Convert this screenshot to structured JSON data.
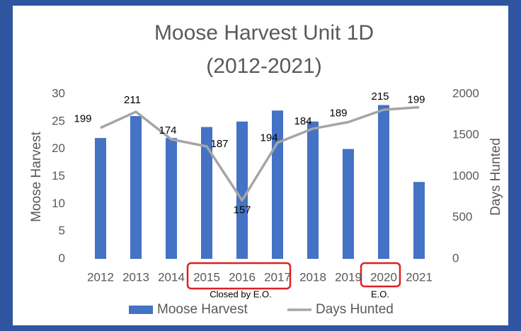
{
  "chart_data": {
    "type": "bar_line",
    "title": [
      "Moose Harvest Unit 1D",
      "(2012-2021)"
    ],
    "y_label": "Moose Harvest",
    "y2_label": "Days Hunted",
    "categories": [
      "2012",
      "2013",
      "2014",
      "2015",
      "2016",
      "2017",
      "2018",
      "2019",
      "2020",
      "2021"
    ],
    "series": [
      {
        "name": "Moose Harvest",
        "type": "bar",
        "color": "#4472c4",
        "values": [
          22,
          26,
          22,
          24,
          25,
          27,
          25,
          20,
          28,
          14
        ]
      },
      {
        "name": "Days Hunted",
        "type": "line",
        "axis": "y2",
        "color": "#a5a5a5",
        "values": [
          1590,
          1785,
          1450,
          1365,
          710,
          1410,
          1580,
          1660,
          1810,
          1840
        ],
        "point_labels": [
          "199",
          "211",
          "174",
          "187",
          "157",
          "194",
          "184",
          "189",
          "215",
          "199"
        ]
      }
    ],
    "ylim": [
      0,
      30
    ],
    "yticks": [
      0,
      5,
      10,
      15,
      20,
      25,
      30
    ],
    "y2lim": [
      0,
      2000
    ],
    "y2ticks": [
      0,
      500,
      1000,
      1500,
      2000
    ],
    "annotations": [
      "Closed by E.O.",
      "E.O."
    ],
    "legend": "bottom",
    "grid": false
  }
}
